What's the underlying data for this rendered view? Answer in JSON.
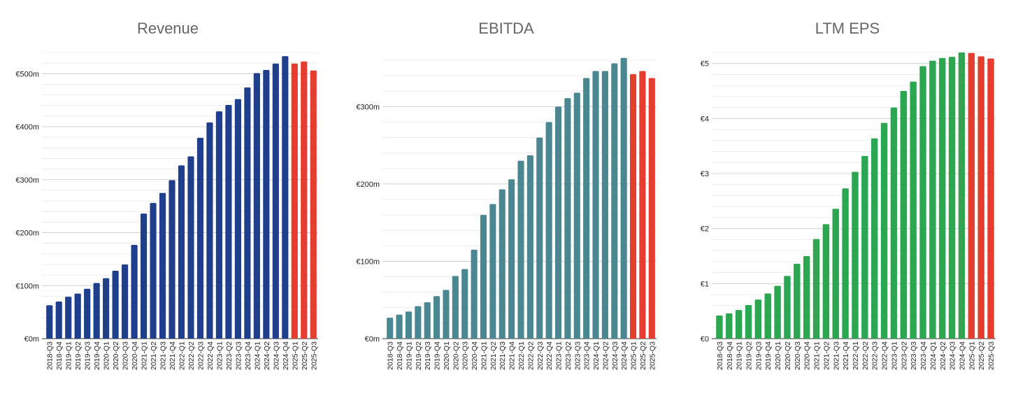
{
  "colors": {
    "revenue_actual": "#1f3f8c",
    "ebitda_actual": "#4a8791",
    "eps_actual": "#2da652",
    "forecast": "#e53d2f",
    "grid_major": "#d0d0d0",
    "grid_minor": "#ececec",
    "title": "#666666"
  },
  "chart_data": [
    {
      "type": "bar",
      "title": "Revenue",
      "xlabel": "",
      "ylabel": "",
      "ylim": [
        0,
        540
      ],
      "y_tick_values": [
        0,
        100,
        200,
        300,
        400,
        500
      ],
      "y_tick_labels": [
        "€0m",
        "€100m",
        "€200m",
        "€300m",
        "€400m",
        "€500m"
      ],
      "grid": true,
      "categories": [
        "2018-Q3",
        "2018-Q4",
        "2019-Q1",
        "2019-Q2",
        "2019-Q3",
        "2019-Q4",
        "2020-Q1",
        "2020-Q2",
        "2020-Q3",
        "2020-Q4",
        "2021-Q1",
        "2021-Q2",
        "2021-Q3",
        "2021-Q4",
        "2022-Q1",
        "2022-Q2",
        "2022-Q3",
        "2022-Q4",
        "2023-Q1",
        "2023-Q2",
        "2023-Q3",
        "2023-Q4",
        "2024-Q1",
        "2024-Q2",
        "2024-Q3",
        "2024-Q4",
        "2025-Q1",
        "2025-Q2",
        "2025-Q3"
      ],
      "values": [
        63,
        70,
        79,
        85,
        94,
        105,
        114,
        128,
        140,
        177,
        236,
        256,
        275,
        299,
        327,
        344,
        379,
        408,
        429,
        441,
        452,
        474,
        501,
        507,
        519,
        533,
        519,
        523,
        506
      ],
      "forecast_from_index": 26
    },
    {
      "type": "bar",
      "title": "EBITDA",
      "xlabel": "",
      "ylabel": "",
      "ylim": [
        0,
        370
      ],
      "y_tick_values": [
        0,
        100,
        200,
        300
      ],
      "y_tick_labels": [
        "€0m",
        "€100m",
        "€200m",
        "€300m"
      ],
      "grid": true,
      "categories": [
        "2018-Q3",
        "2018-Q4",
        "2019-Q1",
        "2019-Q2",
        "2019-Q3",
        "2019-Q4",
        "2020-Q1",
        "2020-Q2",
        "2020-Q3",
        "2020-Q4",
        "2021-Q1",
        "2021-Q2",
        "2021-Q3",
        "2021-Q4",
        "2022-Q1",
        "2022-Q2",
        "2022-Q3",
        "2022-Q4",
        "2023-Q1",
        "2023-Q2",
        "2023-Q3",
        "2023-Q4",
        "2024-Q1",
        "2024-Q2",
        "2024-Q3",
        "2024-Q4",
        "2025-Q1",
        "2025-Q2",
        "2025-Q3"
      ],
      "values": [
        27,
        31,
        35,
        42,
        47,
        55,
        63,
        81,
        90,
        115,
        160,
        174,
        193,
        206,
        230,
        237,
        260,
        280,
        300,
        311,
        318,
        337,
        346,
        346,
        356,
        363,
        342,
        346,
        337
      ],
      "forecast_from_index": 26
    },
    {
      "type": "bar",
      "title": "LTM EPS",
      "xlabel": "",
      "ylabel": "",
      "ylim": [
        0,
        5.2
      ],
      "y_tick_values": [
        0,
        1,
        2,
        3,
        4,
        5
      ],
      "y_tick_labels": [
        "€0",
        "€1",
        "€2",
        "€3",
        "€4",
        "€5"
      ],
      "grid": true,
      "categories": [
        "2018-Q3",
        "2018-Q4",
        "2019-Q1",
        "2019-Q2",
        "2019-Q3",
        "2019-Q4",
        "2020-Q1",
        "2020-Q2",
        "2020-Q3",
        "2020-Q4",
        "2021-Q1",
        "2021-Q2",
        "2021-Q3",
        "2021-Q4",
        "2022-Q1",
        "2022-Q2",
        "2022-Q3",
        "2022-Q4",
        "2023-Q1",
        "2023-Q2",
        "2023-Q3",
        "2023-Q4",
        "2024-Q1",
        "2024-Q2",
        "2024-Q3",
        "2024-Q4",
        "2025-Q1",
        "2025-Q2",
        "2025-Q3"
      ],
      "values": [
        0.42,
        0.46,
        0.52,
        0.61,
        0.71,
        0.82,
        0.96,
        1.14,
        1.36,
        1.5,
        1.81,
        2.08,
        2.36,
        2.73,
        3.03,
        3.32,
        3.64,
        3.92,
        4.2,
        4.5,
        4.67,
        4.95,
        5.05,
        5.1,
        5.12,
        5.2,
        5.19,
        5.13,
        5.09
      ],
      "forecast_from_index": 26
    }
  ]
}
